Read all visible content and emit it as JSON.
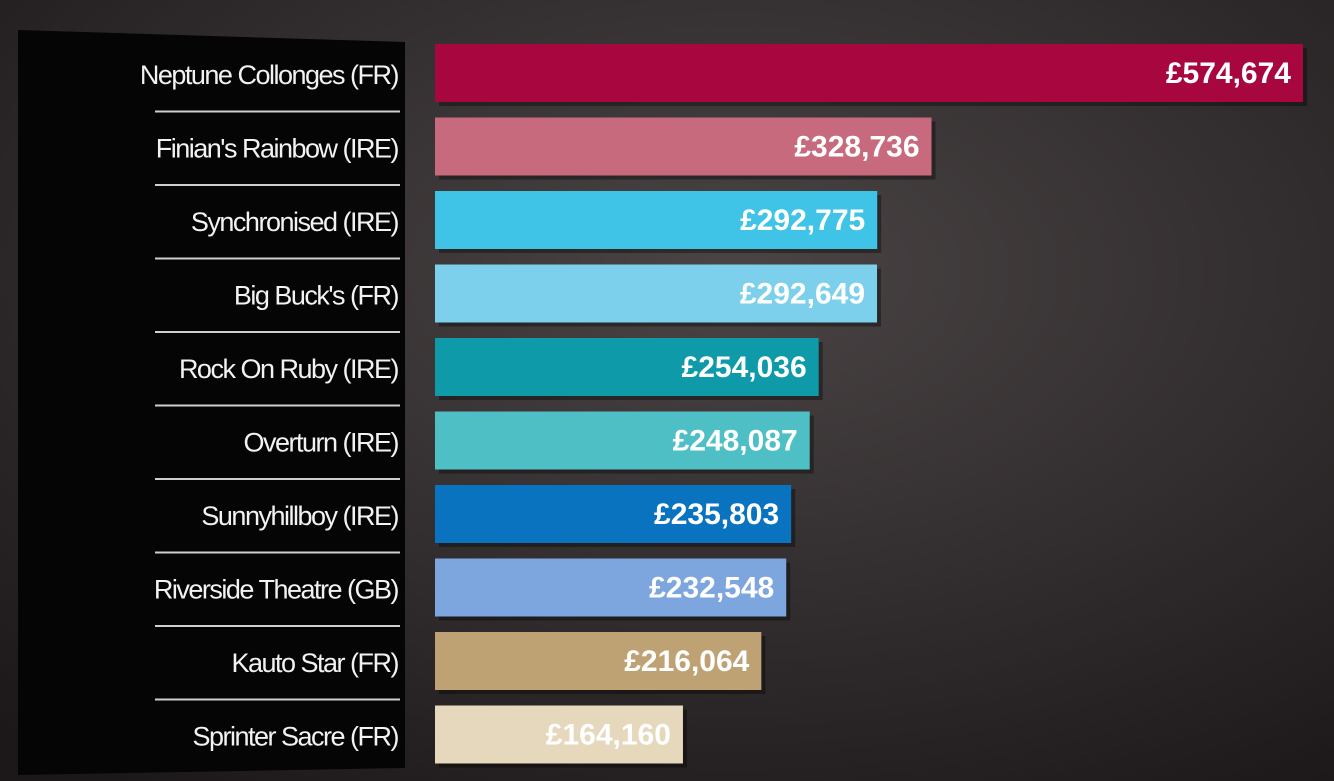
{
  "chart_data": {
    "type": "bar",
    "categories": [
      "Neptune Collonges (FR)",
      "Finian's Rainbow (IRE)",
      "Synchronised (IRE)",
      "Big Buck's (FR)",
      "Rock On Ruby (IRE)",
      "Overturn (IRE)",
      "Sunnyhillboy (IRE)",
      "Riverside Theatre (GB)",
      "Kauto Star (FR)",
      "Sprinter Sacre (FR)"
    ],
    "values": [
      574674,
      328736,
      292775,
      292649,
      254036,
      248087,
      235803,
      232548,
      216064,
      164160
    ],
    "value_labels": [
      "£574,674",
      "£328,736",
      "£292,775",
      "£292,649",
      "£254,036",
      "£248,087",
      "£235,803",
      "£232,548",
      "£216,064",
      "£164,160"
    ],
    "colors": [
      "#a8063f",
      "#c86a7e",
      "#3fc3e6",
      "#7dd0ec",
      "#0e9aa8",
      "#4fbfc6",
      "#0a73bf",
      "#7ea6de",
      "#bfa274",
      "#e6d8bc"
    ]
  }
}
